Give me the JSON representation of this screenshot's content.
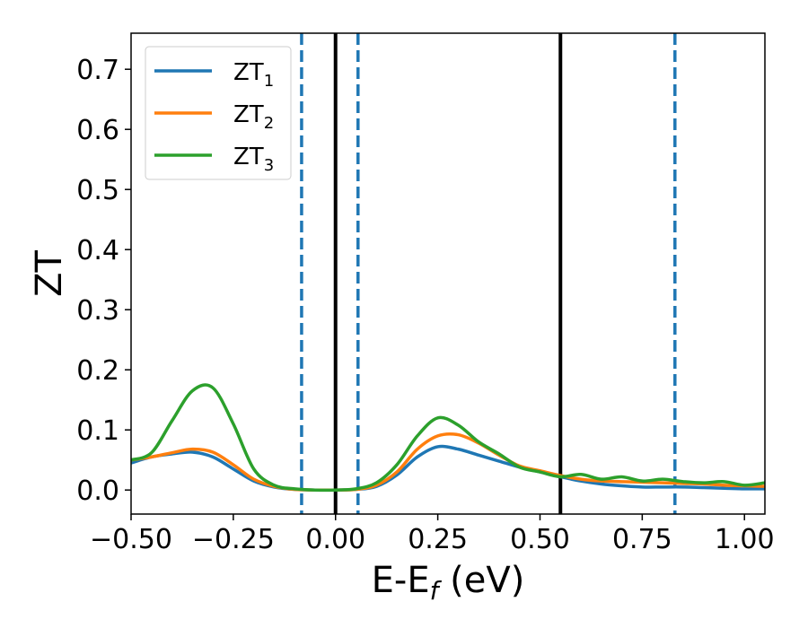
{
  "chart_data": {
    "type": "line",
    "xlabel": "E-E",
    "xlabel_sub": "f",
    "xlabel_unit": " (eV)",
    "ylabel": "ZT",
    "xlim": [
      -0.5,
      1.05
    ],
    "ylim": [
      -0.04,
      0.76
    ],
    "x_ticks": [
      -0.5,
      -0.25,
      0.0,
      0.25,
      0.5,
      0.75,
      1.0
    ],
    "x_tick_labels": [
      "−0.50",
      "−0.25",
      "0.00",
      "0.25",
      "0.50",
      "0.75",
      "1.00"
    ],
    "y_ticks": [
      0.0,
      0.1,
      0.2,
      0.3,
      0.4,
      0.5,
      0.6,
      0.7
    ],
    "y_tick_labels": [
      "0.0",
      "0.1",
      "0.2",
      "0.3",
      "0.4",
      "0.5",
      "0.6",
      "0.7"
    ],
    "grid": false,
    "legend_position": "top-left",
    "vertical_lines": [
      {
        "x": -0.083,
        "style": "dashed",
        "color": "#1f77b4"
      },
      {
        "x": 0.0,
        "style": "solid",
        "color": "#000000"
      },
      {
        "x": 0.055,
        "style": "dashed",
        "color": "#1f77b4"
      },
      {
        "x": 0.55,
        "style": "solid",
        "color": "#000000"
      },
      {
        "x": 0.83,
        "style": "dashed",
        "color": "#1f77b4"
      }
    ],
    "series": [
      {
        "name": "ZT",
        "subscript": "1",
        "color": "#1f77b4",
        "x": [
          -0.5,
          -0.45,
          -0.4,
          -0.35,
          -0.3,
          -0.25,
          -0.2,
          -0.15,
          -0.1,
          -0.05,
          0.0,
          0.05,
          0.1,
          0.15,
          0.2,
          0.25,
          0.3,
          0.35,
          0.4,
          0.45,
          0.5,
          0.55,
          0.6,
          0.65,
          0.7,
          0.75,
          0.8,
          0.85,
          0.9,
          0.95,
          1.0,
          1.05
        ],
        "values": [
          0.045,
          0.055,
          0.06,
          0.063,
          0.055,
          0.035,
          0.015,
          0.005,
          0.001,
          0.0,
          0.0,
          0.001,
          0.006,
          0.025,
          0.055,
          0.072,
          0.068,
          0.058,
          0.048,
          0.038,
          0.03,
          0.022,
          0.015,
          0.01,
          0.007,
          0.005,
          0.005,
          0.005,
          0.004,
          0.003,
          0.002,
          0.002
        ]
      },
      {
        "name": "ZT",
        "subscript": "2",
        "color": "#ff7f0e",
        "x": [
          -0.5,
          -0.45,
          -0.4,
          -0.35,
          -0.3,
          -0.25,
          -0.2,
          -0.15,
          -0.1,
          -0.05,
          0.0,
          0.05,
          0.1,
          0.15,
          0.2,
          0.25,
          0.3,
          0.35,
          0.4,
          0.45,
          0.5,
          0.55,
          0.6,
          0.65,
          0.7,
          0.75,
          0.8,
          0.85,
          0.9,
          0.95,
          1.0,
          1.05
        ],
        "values": [
          0.05,
          0.055,
          0.062,
          0.068,
          0.063,
          0.042,
          0.018,
          0.006,
          0.001,
          0.0,
          0.0,
          0.001,
          0.008,
          0.03,
          0.068,
          0.09,
          0.092,
          0.078,
          0.058,
          0.04,
          0.032,
          0.024,
          0.018,
          0.015,
          0.014,
          0.013,
          0.012,
          0.011,
          0.01,
          0.008,
          0.007,
          0.006
        ]
      },
      {
        "name": "ZT",
        "subscript": "3",
        "color": "#2ca02c",
        "x": [
          -0.5,
          -0.45,
          -0.4,
          -0.35,
          -0.3,
          -0.25,
          -0.2,
          -0.15,
          -0.1,
          -0.05,
          0.0,
          0.05,
          0.1,
          0.15,
          0.2,
          0.25,
          0.3,
          0.35,
          0.4,
          0.45,
          0.5,
          0.55,
          0.6,
          0.65,
          0.7,
          0.75,
          0.8,
          0.85,
          0.9,
          0.95,
          1.0,
          1.05
        ],
        "values": [
          0.05,
          0.062,
          0.115,
          0.165,
          0.17,
          0.11,
          0.035,
          0.008,
          0.002,
          0.0,
          0.0,
          0.002,
          0.012,
          0.042,
          0.09,
          0.12,
          0.108,
          0.08,
          0.06,
          0.038,
          0.03,
          0.022,
          0.026,
          0.018,
          0.022,
          0.015,
          0.018,
          0.014,
          0.012,
          0.014,
          0.008,
          0.012
        ]
      }
    ]
  }
}
